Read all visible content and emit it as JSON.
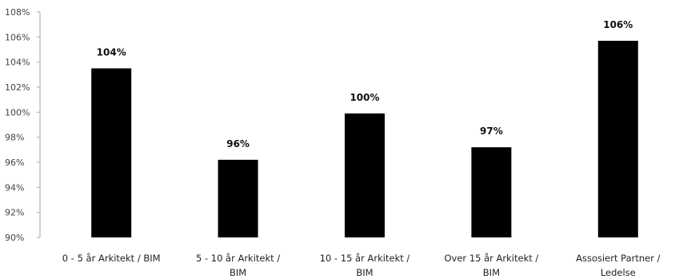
{
  "chart_data": {
    "type": "bar",
    "title": "",
    "xlabel": "",
    "ylabel": "",
    "categories": [
      [
        "0 - 5 år Arkitekt / BIM"
      ],
      [
        "5 - 10 år Arkitekt /",
        "BIM"
      ],
      [
        "10 - 15 år Arkitekt /",
        "BIM"
      ],
      [
        "Over 15 år Arkitekt /",
        "BIM"
      ],
      [
        "Assosiert Partner /",
        "Ledelse"
      ]
    ],
    "values": [
      103.5,
      96.2,
      99.9,
      97.2,
      105.7
    ],
    "data_labels": [
      "104%",
      "96%",
      "100%",
      "97%",
      "106%"
    ],
    "yticks": [
      "90%",
      "92%",
      "94%",
      "96%",
      "98%",
      "100%",
      "102%",
      "104%",
      "106%",
      "108%"
    ],
    "ylim": [
      90,
      108
    ],
    "grid": false,
    "legend": "none",
    "colors": {
      "bar": "#000000",
      "axis": "#aaaaaa"
    }
  }
}
